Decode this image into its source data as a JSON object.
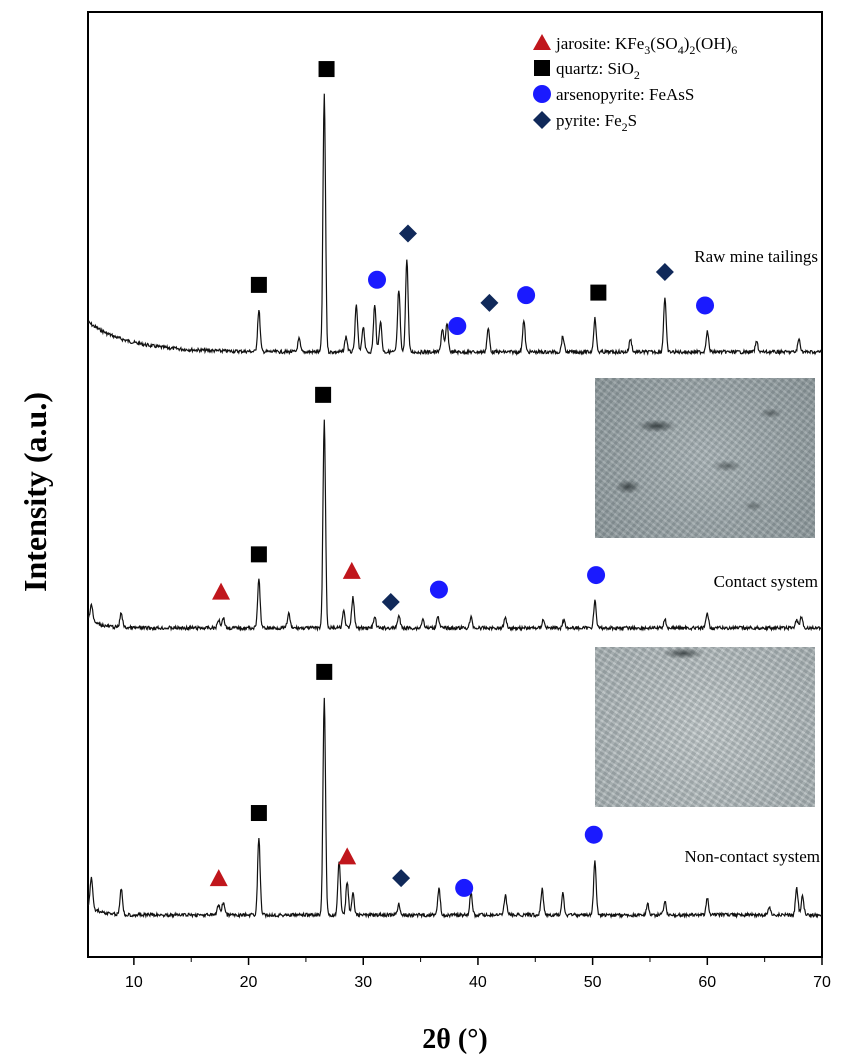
{
  "chart_data": {
    "type": "line",
    "xlabel": "2θ (°)",
    "ylabel": "Intensity (a.u.)",
    "xlim": [
      6,
      70
    ],
    "xticks": [
      10,
      20,
      30,
      40,
      50,
      60,
      70
    ],
    "grid": false,
    "legend_position": "top-right",
    "legend": [
      {
        "marker": "triangle",
        "color": "#c0161c",
        "text": "jarosite: KFe3(SO4)2(OH)6"
      },
      {
        "marker": "square",
        "color": "#000000",
        "text": "quartz: SiO2"
      },
      {
        "marker": "circle",
        "color": "#1a1aff",
        "text": "arsenopyrite: FeAsS"
      },
      {
        "marker": "diamond",
        "color": "#10295a",
        "text": "pyrite: Fe2S"
      }
    ],
    "series": [
      {
        "name": "Raw mine tailings",
        "peaks": [
          {
            "x": 20.9,
            "h": 0.16
          },
          {
            "x": 24.4,
            "h": 0.05
          },
          {
            "x": 26.6,
            "h": 1.0
          },
          {
            "x": 28.5,
            "h": 0.06
          },
          {
            "x": 29.4,
            "h": 0.18
          },
          {
            "x": 30.0,
            "h": 0.1
          },
          {
            "x": 31.0,
            "h": 0.18
          },
          {
            "x": 31.5,
            "h": 0.12
          },
          {
            "x": 33.1,
            "h": 0.24
          },
          {
            "x": 33.8,
            "h": 0.36
          },
          {
            "x": 36.9,
            "h": 0.09
          },
          {
            "x": 37.3,
            "h": 0.11
          },
          {
            "x": 40.9,
            "h": 0.09
          },
          {
            "x": 44.0,
            "h": 0.12
          },
          {
            "x": 47.4,
            "h": 0.06
          },
          {
            "x": 50.2,
            "h": 0.13
          },
          {
            "x": 53.3,
            "h": 0.05
          },
          {
            "x": 56.3,
            "h": 0.21
          },
          {
            "x": 60.0,
            "h": 0.08
          },
          {
            "x": 64.3,
            "h": 0.04
          },
          {
            "x": 68.0,
            "h": 0.05
          }
        ],
        "markers": [
          {
            "x": 20.9,
            "phase": "quartz"
          },
          {
            "x": 26.8,
            "phase": "quartz"
          },
          {
            "x": 31.2,
            "phase": "arsenopyrite"
          },
          {
            "x": 33.9,
            "phase": "pyrite"
          },
          {
            "x": 38.2,
            "phase": "arsenopyrite"
          },
          {
            "x": 41.0,
            "phase": "pyrite"
          },
          {
            "x": 44.2,
            "phase": "arsenopyrite"
          },
          {
            "x": 50.5,
            "phase": "quartz"
          },
          {
            "x": 56.3,
            "phase": "pyrite"
          },
          {
            "x": 59.8,
            "phase": "arsenopyrite"
          }
        ]
      },
      {
        "name": "Contact system",
        "peaks": [
          {
            "x": 6.3,
            "h": 0.08
          },
          {
            "x": 8.9,
            "h": 0.07
          },
          {
            "x": 17.4,
            "h": 0.04
          },
          {
            "x": 17.8,
            "h": 0.05
          },
          {
            "x": 20.9,
            "h": 0.23
          },
          {
            "x": 23.5,
            "h": 0.07
          },
          {
            "x": 26.6,
            "h": 1.0
          },
          {
            "x": 28.3,
            "h": 0.08
          },
          {
            "x": 29.1,
            "h": 0.15
          },
          {
            "x": 31.0,
            "h": 0.05
          },
          {
            "x": 33.1,
            "h": 0.06
          },
          {
            "x": 35.2,
            "h": 0.04
          },
          {
            "x": 36.5,
            "h": 0.06
          },
          {
            "x": 39.4,
            "h": 0.05
          },
          {
            "x": 42.4,
            "h": 0.05
          },
          {
            "x": 45.7,
            "h": 0.04
          },
          {
            "x": 47.5,
            "h": 0.04
          },
          {
            "x": 50.2,
            "h": 0.13
          },
          {
            "x": 56.3,
            "h": 0.04
          },
          {
            "x": 60.0,
            "h": 0.07
          },
          {
            "x": 67.8,
            "h": 0.04
          },
          {
            "x": 68.2,
            "h": 0.05
          }
        ],
        "markers": [
          {
            "x": 17.6,
            "phase": "jarosite"
          },
          {
            "x": 20.9,
            "phase": "quartz"
          },
          {
            "x": 26.5,
            "phase": "quartz"
          },
          {
            "x": 29.0,
            "phase": "jarosite"
          },
          {
            "x": 32.4,
            "phase": "pyrite"
          },
          {
            "x": 36.6,
            "phase": "arsenopyrite"
          },
          {
            "x": 50.3,
            "phase": "arsenopyrite"
          }
        ]
      },
      {
        "name": "Non-contact system",
        "peaks": [
          {
            "x": 6.3,
            "h": 0.14
          },
          {
            "x": 8.9,
            "h": 0.12
          },
          {
            "x": 17.4,
            "h": 0.05
          },
          {
            "x": 17.8,
            "h": 0.06
          },
          {
            "x": 20.9,
            "h": 0.35
          },
          {
            "x": 26.6,
            "h": 1.0
          },
          {
            "x": 27.9,
            "h": 0.25
          },
          {
            "x": 28.6,
            "h": 0.15
          },
          {
            "x": 29.1,
            "h": 0.1
          },
          {
            "x": 33.1,
            "h": 0.05
          },
          {
            "x": 36.6,
            "h": 0.12
          },
          {
            "x": 39.4,
            "h": 0.1
          },
          {
            "x": 42.4,
            "h": 0.09
          },
          {
            "x": 45.6,
            "h": 0.12
          },
          {
            "x": 47.4,
            "h": 0.1
          },
          {
            "x": 50.2,
            "h": 0.25
          },
          {
            "x": 54.8,
            "h": 0.05
          },
          {
            "x": 56.3,
            "h": 0.06
          },
          {
            "x": 60.0,
            "h": 0.08
          },
          {
            "x": 65.4,
            "h": 0.04
          },
          {
            "x": 67.8,
            "h": 0.12
          },
          {
            "x": 68.3,
            "h": 0.09
          }
        ],
        "markers": [
          {
            "x": 17.4,
            "phase": "jarosite"
          },
          {
            "x": 20.9,
            "phase": "quartz"
          },
          {
            "x": 26.6,
            "phase": "quartz"
          },
          {
            "x": 28.6,
            "phase": "jarosite"
          },
          {
            "x": 33.3,
            "phase": "pyrite"
          },
          {
            "x": 38.8,
            "phase": "arsenopyrite"
          },
          {
            "x": 50.1,
            "phase": "arsenopyrite"
          }
        ]
      }
    ]
  },
  "colors": {
    "jarosite": "#c0161c",
    "quartz": "#000000",
    "arsenopyrite": "#1a1aff",
    "pyrite": "#10295a"
  },
  "insets": {
    "top": "micrograph",
    "bottom": "micrograph"
  }
}
